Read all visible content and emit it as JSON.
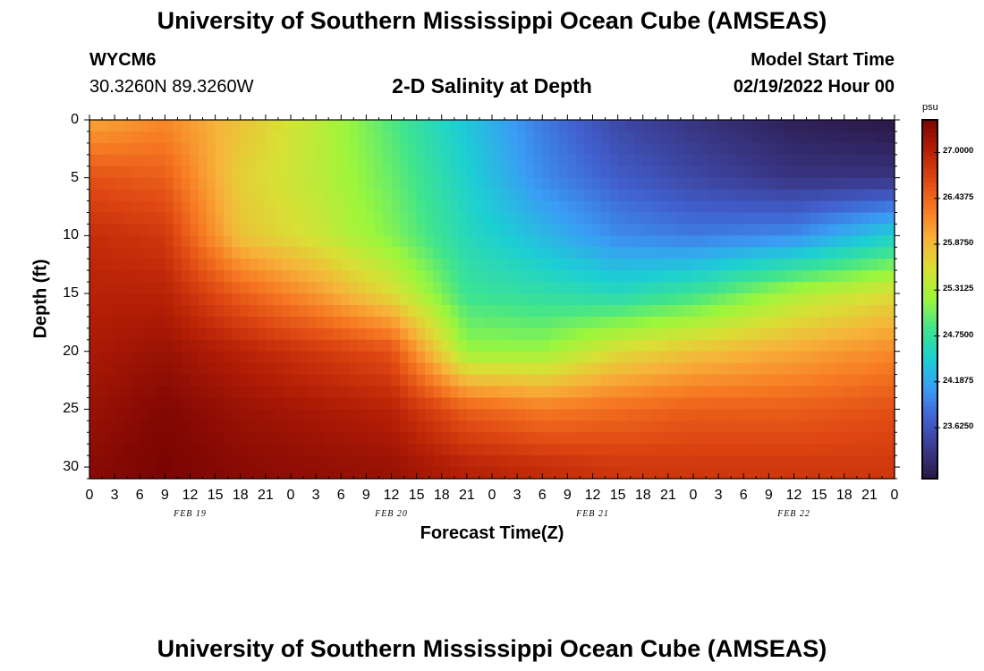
{
  "header": {
    "title": "University of Southern Mississippi Ocean Cube (AMSEAS)",
    "station_id": "WYCM6",
    "coords": "30.3260N  89.3260W",
    "plot_title": "2-D Salinity at Depth",
    "model_start_label": "Model Start Time",
    "model_start_value": "02/19/2022 Hour 00"
  },
  "footer": {
    "title_repeat": "University of Southern Mississippi Ocean Cube (AMSEAS)"
  },
  "chart_data": {
    "type": "heatmap",
    "title": "2-D Salinity at Depth",
    "xlabel": "Forecast Time(Z)",
    "ylabel": "Depth (ft)",
    "x_ticks": [
      "0",
      "3",
      "6",
      "9",
      "12",
      "15",
      "18",
      "21",
      "0",
      "3",
      "6",
      "9",
      "12",
      "15",
      "18",
      "21",
      "0",
      "3",
      "6",
      "9",
      "12",
      "15",
      "18",
      "21",
      "0",
      "3",
      "6",
      "9",
      "12",
      "15",
      "18",
      "21",
      "0"
    ],
    "day_labels": [
      "FEB 19",
      "FEB 20",
      "FEB 21",
      "FEB 22"
    ],
    "y_ticks": [
      0,
      5,
      10,
      15,
      20,
      25,
      30
    ],
    "xlim_hours": [
      0,
      96
    ],
    "ylim_ft": [
      0,
      31
    ],
    "colorbar": {
      "unit": "psu",
      "tick_labels": [
        "27.0000",
        "26.4375",
        "25.8750",
        "25.3125",
        "24.7500",
        "24.1875",
        "23.6250"
      ],
      "tick_values": [
        27.0,
        26.4375,
        25.875,
        25.3125,
        24.75,
        24.1875,
        23.625
      ],
      "range": [
        23.0,
        27.4
      ],
      "colors": [
        "#2a1744",
        "#3a3a8c",
        "#4160cf",
        "#3a9cf5",
        "#1ccfd3",
        "#3fe48e",
        "#9bf63c",
        "#d8e035",
        "#f7b23a",
        "#f77a23",
        "#de4712",
        "#b41e05",
        "#7a0403"
      ]
    },
    "salinity_psu": [
      {
        "hours": 0,
        "depth_ft": [
          0,
          5,
          10,
          15,
          20,
          25,
          30
        ],
        "values": [
          26.0,
          26.6,
          26.9,
          27.0,
          27.1,
          27.2,
          27.3
        ]
      },
      {
        "hours": 9,
        "depth_ft": [
          0,
          5,
          10,
          15,
          20,
          25,
          30
        ],
        "values": [
          26.2,
          26.5,
          26.8,
          27.0,
          27.2,
          27.35,
          27.4
        ]
      },
      {
        "hours": 18,
        "depth_ft": [
          0,
          5,
          10,
          15,
          20,
          25,
          30
        ],
        "values": [
          25.8,
          25.7,
          25.8,
          26.5,
          27.0,
          27.2,
          27.3
        ]
      },
      {
        "hours": 27,
        "depth_ft": [
          0,
          5,
          10,
          15,
          20,
          25,
          30
        ],
        "values": [
          25.4,
          25.4,
          25.5,
          26.1,
          26.8,
          27.1,
          27.25
        ]
      },
      {
        "hours": 36,
        "depth_ft": [
          0,
          5,
          10,
          15,
          20,
          25,
          30
        ],
        "values": [
          24.9,
          25.0,
          25.1,
          25.6,
          26.6,
          27.0,
          27.2
        ]
      },
      {
        "hours": 45,
        "depth_ft": [
          0,
          5,
          10,
          15,
          20,
          25,
          30
        ],
        "values": [
          24.4,
          24.5,
          24.6,
          24.8,
          25.2,
          26.5,
          27.0
        ]
      },
      {
        "hours": 54,
        "depth_ft": [
          0,
          5,
          10,
          15,
          20,
          25,
          30
        ],
        "values": [
          23.9,
          24.0,
          24.3,
          24.7,
          25.2,
          26.3,
          26.9
        ]
      },
      {
        "hours": 63,
        "depth_ft": [
          0,
          5,
          10,
          15,
          20,
          25,
          30
        ],
        "values": [
          23.5,
          23.7,
          24.0,
          24.6,
          25.6,
          26.4,
          26.8
        ]
      },
      {
        "hours": 72,
        "depth_ft": [
          0,
          5,
          10,
          15,
          20,
          25,
          30
        ],
        "values": [
          23.3,
          23.5,
          23.9,
          24.8,
          25.8,
          26.5,
          26.8
        ]
      },
      {
        "hours": 84,
        "depth_ft": [
          0,
          5,
          10,
          15,
          20,
          25,
          30
        ],
        "values": [
          23.1,
          23.3,
          24.0,
          25.3,
          26.0,
          26.5,
          26.8
        ]
      },
      {
        "hours": 96,
        "depth_ft": [
          0,
          5,
          10,
          15,
          20,
          25,
          30
        ],
        "values": [
          23.0,
          23.3,
          24.5,
          25.6,
          26.2,
          26.6,
          26.8
        ]
      }
    ]
  }
}
